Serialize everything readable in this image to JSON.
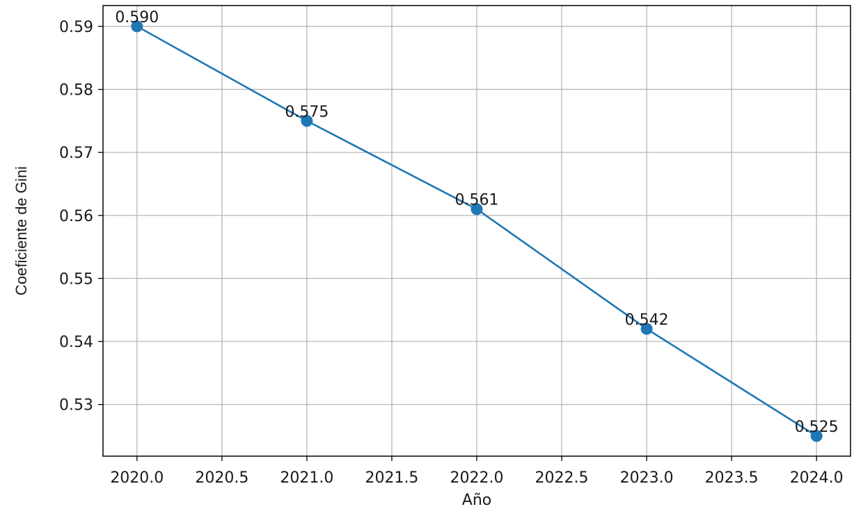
{
  "chart_data": {
    "type": "line",
    "title": "",
    "xlabel": "Año",
    "ylabel": "Coeficiente de Gini",
    "x": [
      2020,
      2021,
      2022,
      2023,
      2024
    ],
    "series": [
      {
        "values": [
          0.59,
          0.575,
          0.561,
          0.542,
          0.525
        ],
        "color": "#1f77b4",
        "marker": "circle"
      }
    ],
    "data_labels": [
      "0.590",
      "0.575",
      "0.561",
      "0.542",
      "0.525"
    ],
    "xlim": [
      2019.8,
      2024.2
    ],
    "ylim": [
      0.5218,
      0.5933
    ],
    "xticks": [
      2020.0,
      2020.5,
      2021.0,
      2021.5,
      2022.0,
      2022.5,
      2023.0,
      2023.5,
      2024.0
    ],
    "xtick_labels": [
      "2020.0",
      "2020.5",
      "2021.0",
      "2021.5",
      "2022.0",
      "2022.5",
      "2023.0",
      "2023.5",
      "2024.0"
    ],
    "yticks": [
      0.53,
      0.54,
      0.55,
      0.56,
      0.57,
      0.58,
      0.59
    ],
    "ytick_labels": [
      "0.53",
      "0.54",
      "0.55",
      "0.56",
      "0.57",
      "0.58",
      "0.59"
    ],
    "grid": true,
    "legend": "none"
  }
}
